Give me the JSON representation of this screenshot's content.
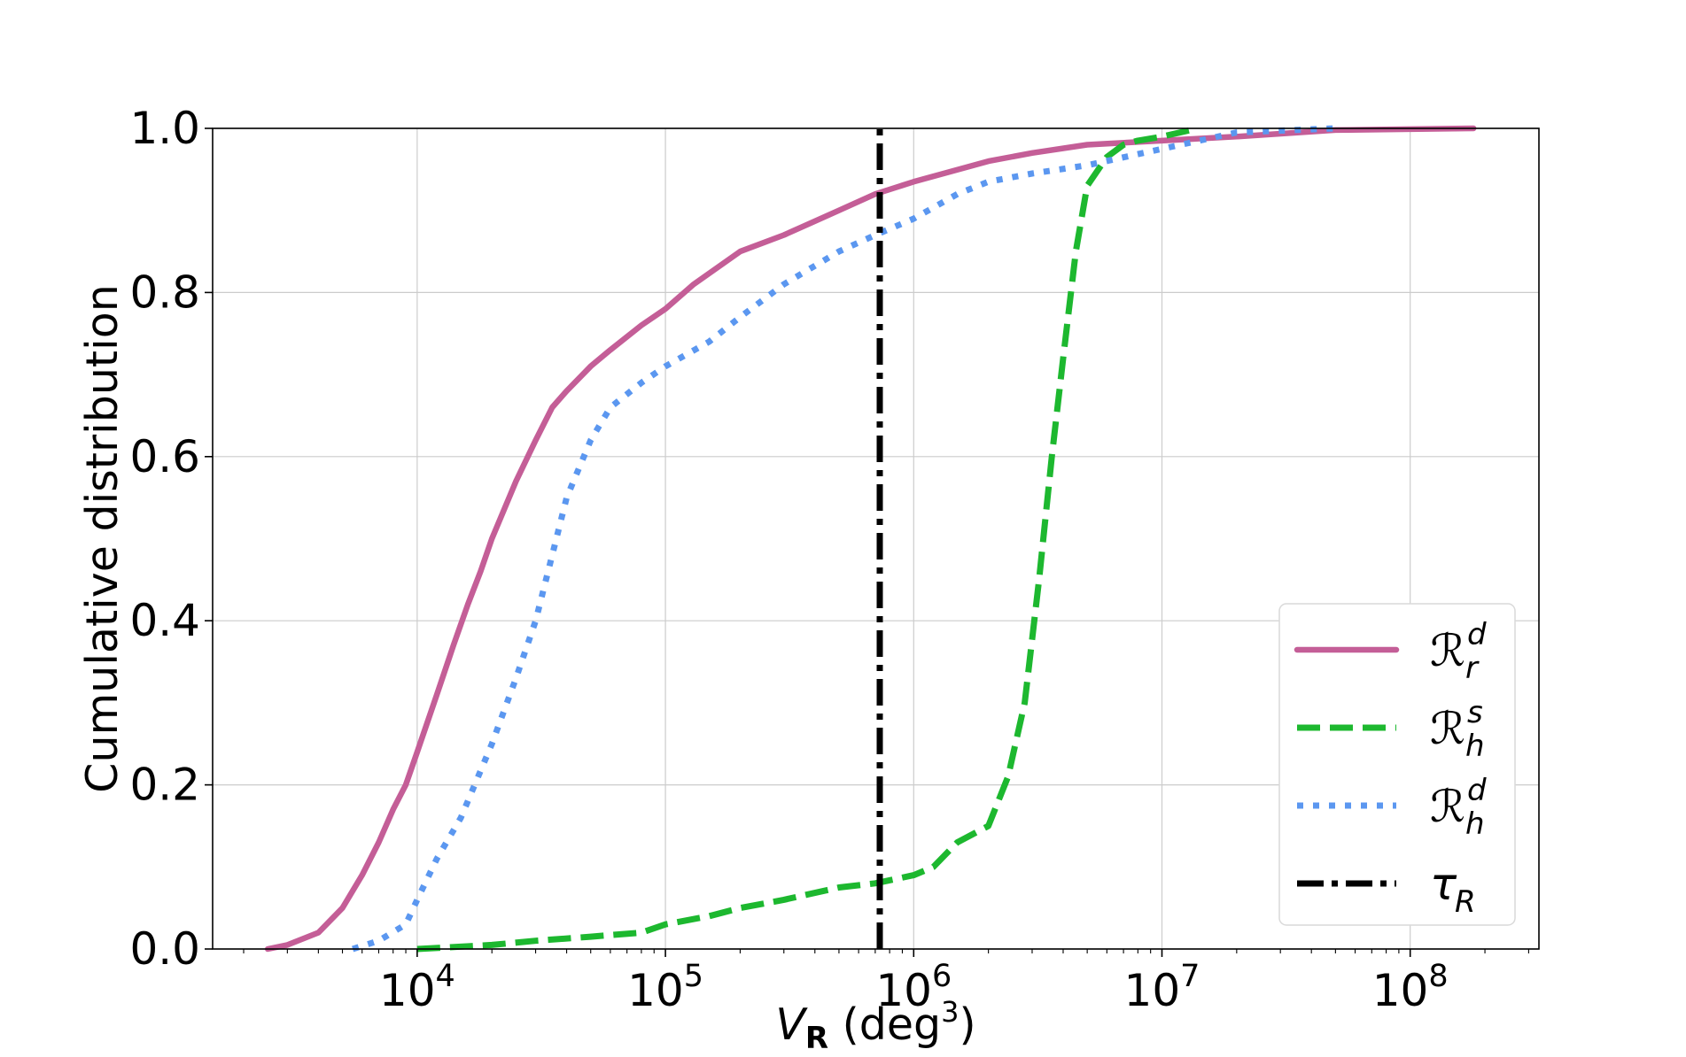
{
  "chart_data": {
    "type": "line",
    "x_scale": "log",
    "xlim": [
      1500,
      330000000
    ],
    "ylim": [
      0,
      1
    ],
    "grid": true,
    "legend_position": "lower-right",
    "xlabel_var": "V",
    "xlabel_sub": "R",
    "xlabel_unit_open": " (deg",
    "xlabel_unit_sup": "3",
    "xlabel_unit_close": ")",
    "ylabel": "Cumulative distribution",
    "x_ticks": [
      {
        "value": 10000,
        "base": "10",
        "exp": "4"
      },
      {
        "value": 100000,
        "base": "10",
        "exp": "5"
      },
      {
        "value": 1000000,
        "base": "10",
        "exp": "6"
      },
      {
        "value": 10000000,
        "base": "10",
        "exp": "7"
      },
      {
        "value": 100000000,
        "base": "10",
        "exp": "8"
      }
    ],
    "y_ticks": [
      {
        "value": 0.0,
        "label": "0.0"
      },
      {
        "value": 0.2,
        "label": "0.2"
      },
      {
        "value": 0.4,
        "label": "0.4"
      },
      {
        "value": 0.6,
        "label": "0.6"
      },
      {
        "value": 0.8,
        "label": "0.8"
      },
      {
        "value": 1.0,
        "label": "1.0"
      }
    ],
    "series": [
      {
        "name": "R_r^d",
        "legend_main": "ℛ",
        "legend_sup": "d",
        "legend_sub": "r",
        "color": "#c45e97",
        "style": "solid",
        "x": [
          2500,
          3000,
          4000,
          5000,
          6000,
          7000,
          8000,
          9000,
          10000,
          12000,
          14000,
          16000,
          18000,
          20000,
          25000,
          30000,
          35000,
          40000,
          50000,
          60000,
          80000,
          100000,
          130000,
          200000,
          300000,
          500000,
          700000,
          1000000,
          2000000,
          3000000,
          5000000,
          10000000,
          20000000,
          50000000,
          100000000,
          180000000
        ],
        "y": [
          0.0,
          0.005,
          0.02,
          0.05,
          0.09,
          0.13,
          0.17,
          0.2,
          0.24,
          0.31,
          0.37,
          0.42,
          0.46,
          0.5,
          0.57,
          0.62,
          0.66,
          0.68,
          0.71,
          0.73,
          0.76,
          0.78,
          0.81,
          0.85,
          0.87,
          0.9,
          0.92,
          0.935,
          0.96,
          0.97,
          0.98,
          0.985,
          0.99,
          0.998,
          0.999,
          1.0
        ]
      },
      {
        "name": "R_h^s",
        "legend_main": "ℛ",
        "legend_sup": "s",
        "legend_sub": "h",
        "color": "#1db82f",
        "style": "dashed",
        "x": [
          10000,
          20000,
          30000,
          50000,
          80000,
          100000,
          150000,
          200000,
          300000,
          500000,
          700000,
          1000000,
          1200000,
          1500000,
          2000000,
          2400000,
          2800000,
          3200000,
          3600000,
          4000000,
          4500000,
          5000000,
          6000000,
          7000000,
          8000000,
          10000000,
          14000000
        ],
        "y": [
          0.0,
          0.005,
          0.01,
          0.015,
          0.02,
          0.03,
          0.04,
          0.05,
          0.06,
          0.075,
          0.08,
          0.09,
          0.1,
          0.13,
          0.15,
          0.21,
          0.3,
          0.45,
          0.6,
          0.72,
          0.85,
          0.93,
          0.965,
          0.98,
          0.985,
          0.99,
          1.0
        ]
      },
      {
        "name": "R_h^d",
        "legend_main": "ℛ",
        "legend_sup": "d",
        "legend_sub": "h",
        "color": "#5b97f0",
        "style": "dotted",
        "x": [
          5500,
          7000,
          9000,
          10000,
          12000,
          15000,
          20000,
          25000,
          30000,
          35000,
          40000,
          50000,
          60000,
          80000,
          100000,
          150000,
          200000,
          300000,
          500000,
          700000,
          1000000,
          1500000,
          2000000,
          3000000,
          5000000,
          10000000,
          20000000,
          50000000
        ],
        "y": [
          0.0,
          0.01,
          0.03,
          0.06,
          0.11,
          0.16,
          0.25,
          0.33,
          0.4,
          0.48,
          0.55,
          0.62,
          0.66,
          0.69,
          0.71,
          0.74,
          0.77,
          0.81,
          0.85,
          0.87,
          0.89,
          0.92,
          0.935,
          0.945,
          0.955,
          0.975,
          0.995,
          1.0
        ]
      },
      {
        "name": "tau_R",
        "legend_main": "τ",
        "legend_sup": "",
        "legend_sub": "R",
        "color": "#000000",
        "style": "dashdot",
        "x": [
          730000,
          730000
        ],
        "y": [
          0.0,
          1.0
        ]
      }
    ]
  }
}
